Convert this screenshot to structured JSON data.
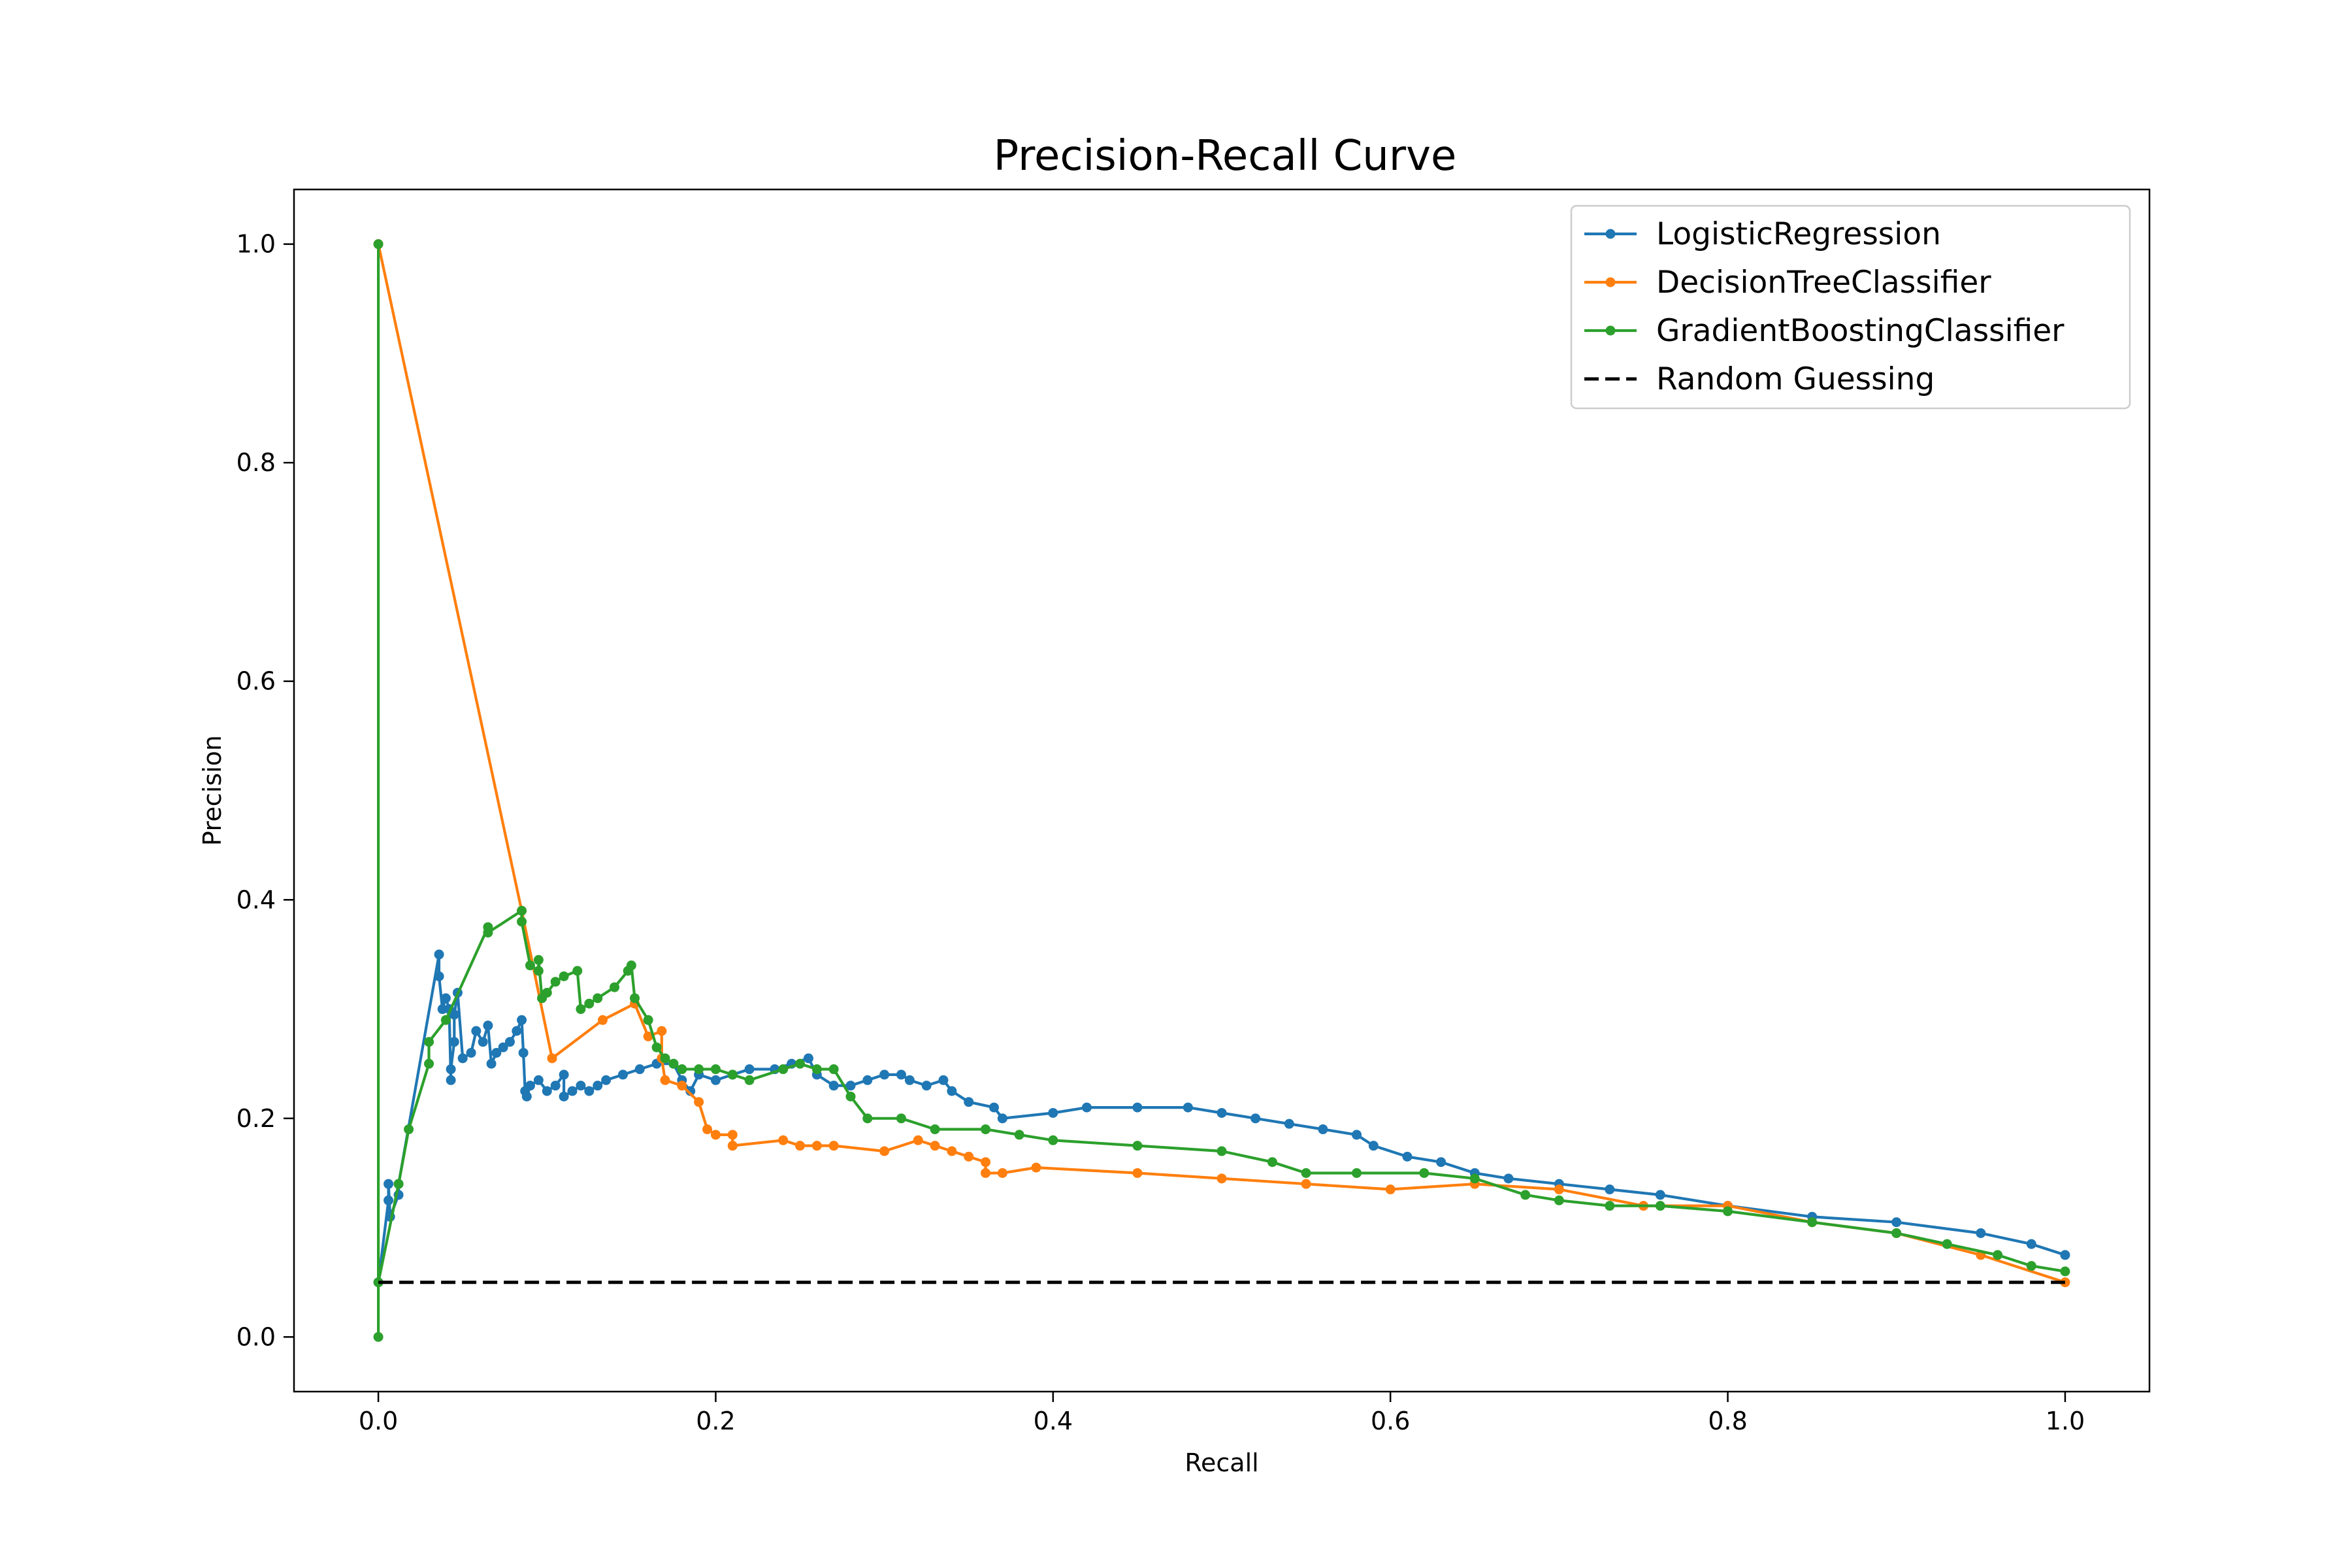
{
  "chart_data": {
    "type": "line",
    "title": "Precision-Recall Curve",
    "xlabel": "Recall",
    "ylabel": "Precision",
    "xlim": [
      -0.05,
      1.05
    ],
    "ylim": [
      -0.05,
      1.05
    ],
    "x_ticks": [
      0.0,
      0.2,
      0.4,
      0.6,
      0.8,
      1.0
    ],
    "x_tick_labels": [
      "0.0",
      "0.2",
      "0.4",
      "0.6",
      "0.8",
      "1.0"
    ],
    "y_ticks": [
      0.0,
      0.2,
      0.4,
      0.6,
      0.8,
      1.0
    ],
    "y_tick_labels": [
      "0.0",
      "0.2",
      "0.4",
      "0.6",
      "0.8",
      "1.0"
    ],
    "grid": false,
    "legend_position": "top-right",
    "series": [
      {
        "name": "LogisticRegression",
        "color": "#1f77b4",
        "marker": "dot",
        "points": [
          [
            0.0,
            0.05
          ],
          [
            0.006,
            0.125
          ],
          [
            0.006,
            0.14
          ],
          [
            0.007,
            0.11
          ],
          [
            0.012,
            0.13
          ],
          [
            0.012,
            0.14
          ],
          [
            0.036,
            0.35
          ],
          [
            0.036,
            0.33
          ],
          [
            0.038,
            0.3
          ],
          [
            0.04,
            0.31
          ],
          [
            0.042,
            0.3
          ],
          [
            0.043,
            0.235
          ],
          [
            0.043,
            0.245
          ],
          [
            0.045,
            0.27
          ],
          [
            0.045,
            0.295
          ],
          [
            0.047,
            0.315
          ],
          [
            0.05,
            0.255
          ],
          [
            0.055,
            0.26
          ],
          [
            0.058,
            0.28
          ],
          [
            0.062,
            0.27
          ],
          [
            0.065,
            0.285
          ],
          [
            0.067,
            0.25
          ],
          [
            0.07,
            0.26
          ],
          [
            0.074,
            0.265
          ],
          [
            0.078,
            0.27
          ],
          [
            0.082,
            0.28
          ],
          [
            0.085,
            0.29
          ],
          [
            0.086,
            0.26
          ],
          [
            0.087,
            0.225
          ],
          [
            0.088,
            0.22
          ],
          [
            0.09,
            0.23
          ],
          [
            0.095,
            0.235
          ],
          [
            0.1,
            0.225
          ],
          [
            0.105,
            0.23
          ],
          [
            0.11,
            0.24
          ],
          [
            0.11,
            0.22
          ],
          [
            0.115,
            0.225
          ],
          [
            0.12,
            0.23
          ],
          [
            0.125,
            0.225
          ],
          [
            0.13,
            0.23
          ],
          [
            0.135,
            0.235
          ],
          [
            0.145,
            0.24
          ],
          [
            0.155,
            0.245
          ],
          [
            0.165,
            0.25
          ],
          [
            0.175,
            0.25
          ],
          [
            0.18,
            0.235
          ],
          [
            0.185,
            0.225
          ],
          [
            0.19,
            0.24
          ],
          [
            0.2,
            0.235
          ],
          [
            0.21,
            0.24
          ],
          [
            0.22,
            0.245
          ],
          [
            0.235,
            0.245
          ],
          [
            0.245,
            0.25
          ],
          [
            0.255,
            0.255
          ],
          [
            0.26,
            0.24
          ],
          [
            0.27,
            0.23
          ],
          [
            0.28,
            0.23
          ],
          [
            0.29,
            0.235
          ],
          [
            0.3,
            0.24
          ],
          [
            0.31,
            0.24
          ],
          [
            0.315,
            0.235
          ],
          [
            0.325,
            0.23
          ],
          [
            0.335,
            0.235
          ],
          [
            0.34,
            0.225
          ],
          [
            0.35,
            0.215
          ],
          [
            0.365,
            0.21
          ],
          [
            0.37,
            0.2
          ],
          [
            0.4,
            0.205
          ],
          [
            0.42,
            0.21
          ],
          [
            0.45,
            0.21
          ],
          [
            0.48,
            0.21
          ],
          [
            0.5,
            0.205
          ],
          [
            0.52,
            0.2
          ],
          [
            0.54,
            0.195
          ],
          [
            0.56,
            0.19
          ],
          [
            0.58,
            0.185
          ],
          [
            0.59,
            0.175
          ],
          [
            0.61,
            0.165
          ],
          [
            0.63,
            0.16
          ],
          [
            0.65,
            0.15
          ],
          [
            0.67,
            0.145
          ],
          [
            0.7,
            0.14
          ],
          [
            0.73,
            0.135
          ],
          [
            0.76,
            0.13
          ],
          [
            0.8,
            0.12
          ],
          [
            0.85,
            0.11
          ],
          [
            0.9,
            0.105
          ],
          [
            0.95,
            0.095
          ],
          [
            0.98,
            0.085
          ],
          [
            1.0,
            0.075
          ]
        ]
      },
      {
        "name": "DecisionTreeClassifier",
        "color": "#ff7f0e",
        "marker": "dot",
        "points": [
          [
            0.0,
            1.0
          ],
          [
            0.085,
            0.39
          ],
          [
            0.103,
            0.255
          ],
          [
            0.133,
            0.29
          ],
          [
            0.152,
            0.305
          ],
          [
            0.16,
            0.275
          ],
          [
            0.168,
            0.28
          ],
          [
            0.168,
            0.255
          ],
          [
            0.17,
            0.235
          ],
          [
            0.18,
            0.23
          ],
          [
            0.19,
            0.215
          ],
          [
            0.195,
            0.19
          ],
          [
            0.2,
            0.185
          ],
          [
            0.21,
            0.185
          ],
          [
            0.21,
            0.175
          ],
          [
            0.24,
            0.18
          ],
          [
            0.25,
            0.175
          ],
          [
            0.26,
            0.175
          ],
          [
            0.27,
            0.175
          ],
          [
            0.3,
            0.17
          ],
          [
            0.32,
            0.18
          ],
          [
            0.33,
            0.175
          ],
          [
            0.34,
            0.17
          ],
          [
            0.35,
            0.165
          ],
          [
            0.36,
            0.16
          ],
          [
            0.36,
            0.15
          ],
          [
            0.37,
            0.15
          ],
          [
            0.39,
            0.155
          ],
          [
            0.45,
            0.15
          ],
          [
            0.5,
            0.145
          ],
          [
            0.55,
            0.14
          ],
          [
            0.6,
            0.135
          ],
          [
            0.65,
            0.14
          ],
          [
            0.7,
            0.135
          ],
          [
            0.75,
            0.12
          ],
          [
            0.8,
            0.12
          ],
          [
            0.85,
            0.105
          ],
          [
            0.9,
            0.095
          ],
          [
            0.95,
            0.075
          ],
          [
            1.0,
            0.05
          ]
        ]
      },
      {
        "name": "GradientBoostingClassifier",
        "color": "#2ca02c",
        "marker": "dot",
        "points": [
          [
            0.0,
            0.0
          ],
          [
            0.0,
            1.0
          ],
          [
            0.0,
            0.05
          ],
          [
            0.012,
            0.14
          ],
          [
            0.018,
            0.19
          ],
          [
            0.03,
            0.25
          ],
          [
            0.03,
            0.27
          ],
          [
            0.04,
            0.29
          ],
          [
            0.065,
            0.375
          ],
          [
            0.065,
            0.37
          ],
          [
            0.085,
            0.39
          ],
          [
            0.085,
            0.38
          ],
          [
            0.09,
            0.34
          ],
          [
            0.095,
            0.335
          ],
          [
            0.095,
            0.345
          ],
          [
            0.097,
            0.31
          ],
          [
            0.1,
            0.315
          ],
          [
            0.105,
            0.325
          ],
          [
            0.11,
            0.33
          ],
          [
            0.118,
            0.335
          ],
          [
            0.12,
            0.3
          ],
          [
            0.125,
            0.305
          ],
          [
            0.13,
            0.31
          ],
          [
            0.14,
            0.32
          ],
          [
            0.148,
            0.335
          ],
          [
            0.15,
            0.34
          ],
          [
            0.152,
            0.31
          ],
          [
            0.16,
            0.29
          ],
          [
            0.165,
            0.265
          ],
          [
            0.17,
            0.255
          ],
          [
            0.175,
            0.25
          ],
          [
            0.18,
            0.245
          ],
          [
            0.19,
            0.245
          ],
          [
            0.2,
            0.245
          ],
          [
            0.21,
            0.24
          ],
          [
            0.22,
            0.235
          ],
          [
            0.24,
            0.245
          ],
          [
            0.25,
            0.25
          ],
          [
            0.26,
            0.245
          ],
          [
            0.27,
            0.245
          ],
          [
            0.28,
            0.22
          ],
          [
            0.29,
            0.2
          ],
          [
            0.31,
            0.2
          ],
          [
            0.33,
            0.19
          ],
          [
            0.36,
            0.19
          ],
          [
            0.38,
            0.185
          ],
          [
            0.4,
            0.18
          ],
          [
            0.45,
            0.175
          ],
          [
            0.5,
            0.17
          ],
          [
            0.53,
            0.16
          ],
          [
            0.55,
            0.15
          ],
          [
            0.58,
            0.15
          ],
          [
            0.62,
            0.15
          ],
          [
            0.65,
            0.145
          ],
          [
            0.68,
            0.13
          ],
          [
            0.7,
            0.125
          ],
          [
            0.73,
            0.12
          ],
          [
            0.76,
            0.12
          ],
          [
            0.8,
            0.115
          ],
          [
            0.85,
            0.105
          ],
          [
            0.9,
            0.095
          ],
          [
            0.93,
            0.085
          ],
          [
            0.96,
            0.075
          ],
          [
            0.98,
            0.065
          ],
          [
            1.0,
            0.06
          ]
        ]
      },
      {
        "name": "Random Guessing",
        "color": "#000000",
        "marker": "none",
        "dashed": true,
        "points": [
          [
            0.0,
            0.05
          ],
          [
            1.0,
            0.05
          ]
        ]
      }
    ]
  }
}
